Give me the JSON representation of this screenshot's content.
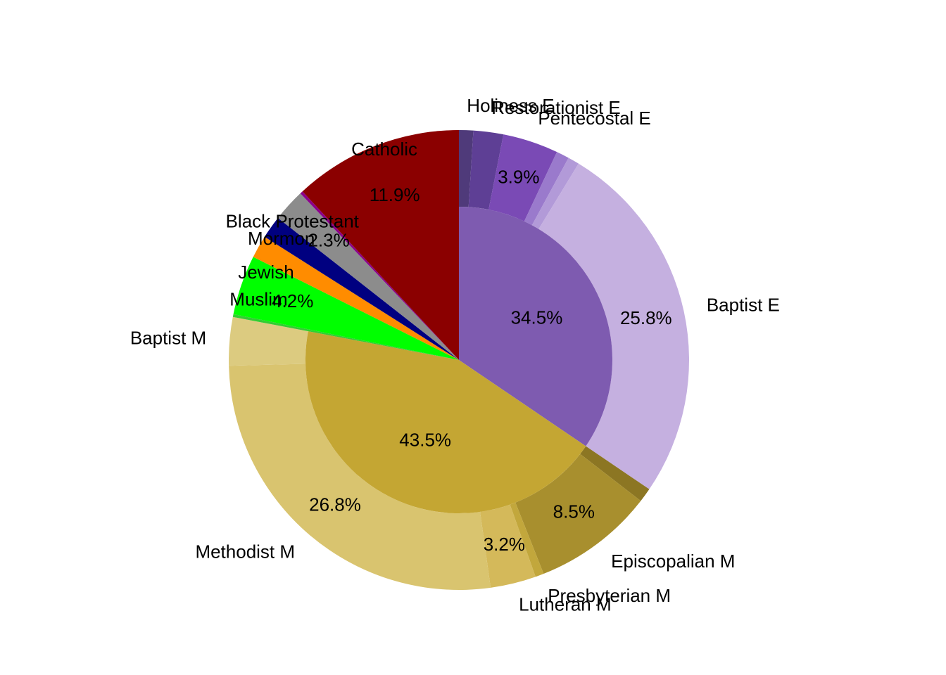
{
  "chart_data": {
    "type": "sunburst",
    "inner": {
      "categories": [
        null,
        null,
        "Muslim",
        "Jewish",
        "Mormon",
        "Black Protestant",
        null,
        null,
        "Catholic"
      ],
      "values": [
        34.5,
        43.5,
        0.2,
        4.2,
        1.6,
        1.6,
        2.3,
        0.2,
        11.9
      ],
      "value_labels": [
        "34.5%",
        "43.5%",
        null,
        "4.2%",
        null,
        null,
        "2.3%",
        null,
        "11.9%"
      ],
      "colors": [
        "#7e5bb0",
        "#c4a633",
        "#32cd32",
        "#00ff00",
        "#ff8c00",
        "#000080",
        "#8c8c8c",
        "#8b008b",
        "#8b0000"
      ]
    },
    "outer": {
      "categories": [
        "Holiness E",
        "Restorationist E",
        "Pentecostal E",
        null,
        null,
        "Baptist E",
        null,
        "Episcopalian M",
        "Presbyterian M",
        "Lutheran M",
        "Methodist M",
        "Baptist M"
      ],
      "values": [
        1.0,
        2.1,
        3.9,
        0.9,
        0.8,
        25.8,
        1.0,
        8.5,
        0.6,
        3.2,
        26.8,
        3.4
      ],
      "value_labels": [
        null,
        null,
        "3.9%",
        null,
        null,
        "25.8%",
        null,
        "8.5%",
        null,
        "3.2%",
        "26.8%",
        null
      ],
      "colors": [
        "#4f3a7a",
        "#5e3f95",
        "#7a4ab5",
        "#9a7acc",
        "#b29ad8",
        "#c5b0e0",
        "#8c7623",
        "#a88f2e",
        "#c2a73c",
        "#d4b95a",
        "#d9c46f",
        "#dccb80"
      ]
    }
  }
}
